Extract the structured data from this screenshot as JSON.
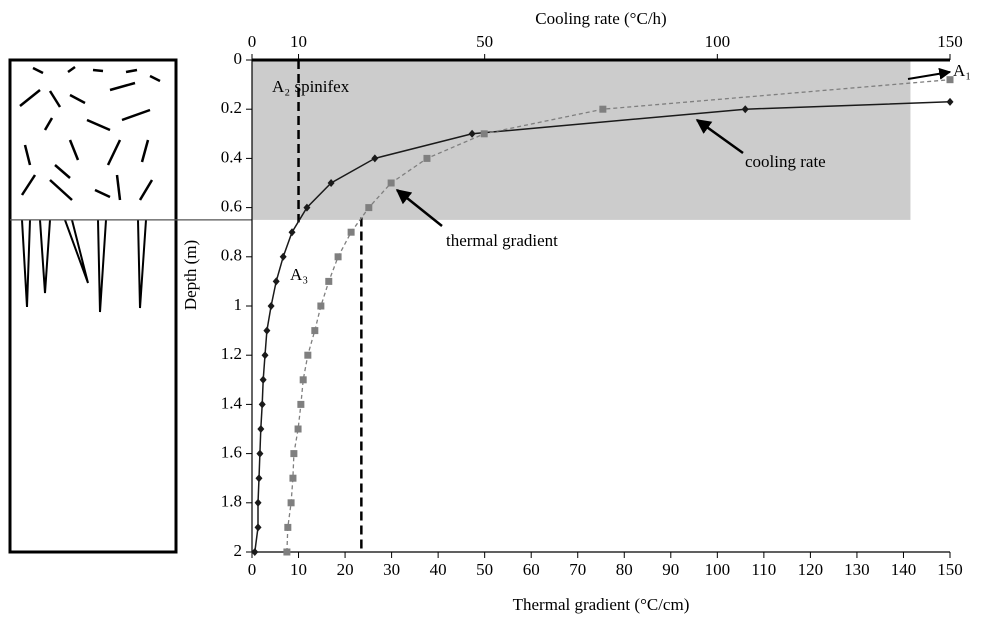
{
  "chart_data": {
    "type": "line",
    "xlabel": "Thermal gradient (°C/cm)",
    "x2label": "Cooling rate (°C/h)",
    "ylabel": "Depth (m)",
    "xlim": [
      0,
      150
    ],
    "xticks": [
      0,
      10,
      20,
      30,
      40,
      50,
      60,
      70,
      80,
      90,
      100,
      110,
      120,
      130,
      140,
      150
    ],
    "x2lim": [
      0,
      150
    ],
    "x2ticks": [
      0,
      10,
      50,
      100,
      150
    ],
    "ylim": [
      0,
      2
    ],
    "yticks": [
      0,
      0.2,
      0.4,
      0.6,
      0.8,
      1,
      1.2,
      1.4,
      1.6,
      1.8,
      2
    ],
    "y_inverted": true,
    "series": [
      {
        "name": "cooling rate",
        "axis": "x2",
        "color": "#1a1a1a",
        "marker": "diamond",
        "dash": "solid",
        "x": [
          0.6,
          1.3,
          1.3,
          1.5,
          1.7,
          1.9,
          2.2,
          2.4,
          2.8,
          3.2,
          4.1,
          5.2,
          6.7,
          8.6,
          11.8,
          17,
          26.4,
          47.3,
          106,
          150
        ],
        "y": [
          2,
          1.9,
          1.8,
          1.7,
          1.6,
          1.5,
          1.4,
          1.3,
          1.2,
          1.1,
          1.0,
          0.9,
          0.8,
          0.7,
          0.6,
          0.5,
          0.4,
          0.3,
          0.2,
          0.17
        ]
      },
      {
        "name": "thermal gradient",
        "axis": "x",
        "color": "#7f7f7f",
        "marker": "square",
        "dash": "dashed",
        "x": [
          7.5,
          7.7,
          8.4,
          8.8,
          9,
          9.9,
          10.5,
          11,
          12,
          13.5,
          14.8,
          16.5,
          18.5,
          21.3,
          25.1,
          29.9,
          37.6,
          49.9,
          75.4,
          150
        ],
        "y": [
          2,
          1.9,
          1.8,
          1.7,
          1.6,
          1.5,
          1.4,
          1.3,
          1.2,
          1.1,
          1.0,
          0.9,
          0.8,
          0.7,
          0.6,
          0.5,
          0.4,
          0.3,
          0.2,
          0.08
        ]
      }
    ],
    "shaded_region": {
      "xlim": [
        0,
        141.5
      ],
      "ylim": [
        0,
        0.65
      ],
      "color": "#cccccc"
    },
    "reference_lines": [
      {
        "axis": "x2",
        "value": 10,
        "ylim": [
          0,
          0.66
        ]
      },
      {
        "axis": "x",
        "value": 23.5,
        "ylim": [
          0.64,
          2
        ]
      }
    ],
    "annotations": [
      "A₂ spinifex",
      "A₁",
      "A₃"
    ]
  }
}
